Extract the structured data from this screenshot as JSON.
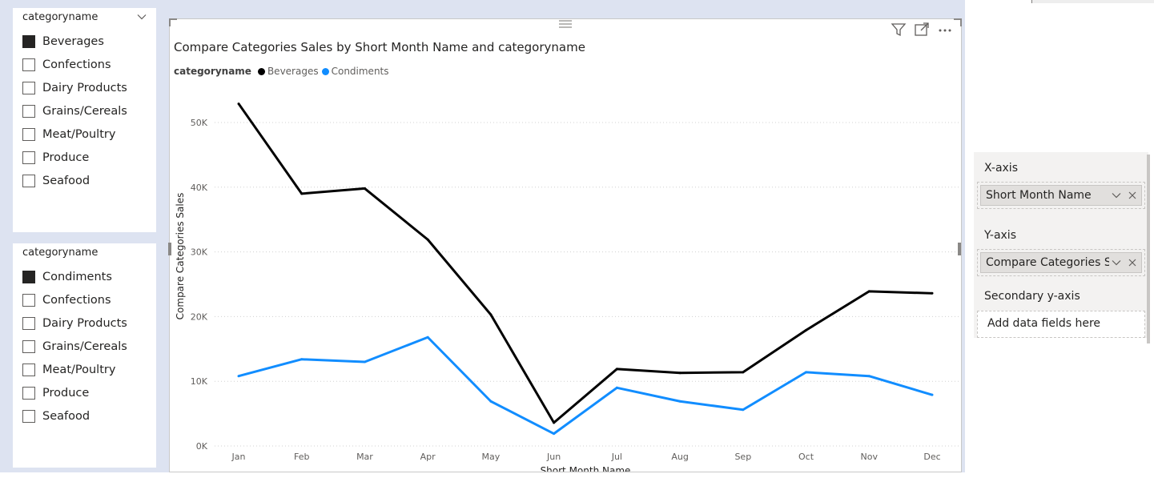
{
  "slicer_1": {
    "title": "categoryname",
    "items": [
      {
        "label": "Beverages",
        "checked": true
      },
      {
        "label": "Confections",
        "checked": false
      },
      {
        "label": "Dairy Products",
        "checked": false
      },
      {
        "label": "Grains/Cereals",
        "checked": false
      },
      {
        "label": "Meat/Poultry",
        "checked": false
      },
      {
        "label": "Produce",
        "checked": false
      },
      {
        "label": "Seafood",
        "checked": false
      }
    ]
  },
  "slicer_2": {
    "title": "categoryname",
    "items": [
      {
        "label": "Condiments",
        "checked": true
      },
      {
        "label": "Confections",
        "checked": false
      },
      {
        "label": "Dairy Products",
        "checked": false
      },
      {
        "label": "Grains/Cereals",
        "checked": false
      },
      {
        "label": "Meat/Poultry",
        "checked": false
      },
      {
        "label": "Produce",
        "checked": false
      },
      {
        "label": "Seafood",
        "checked": false
      }
    ]
  },
  "visual": {
    "icons": [
      "filter-icon",
      "focus-mode-icon",
      "more-options-icon"
    ]
  },
  "chart_data": {
    "type": "line",
    "title": "Compare Categories Sales by Short Month Name and categoryname",
    "legend_title": "categoryname",
    "legend_position": "top-left",
    "xlabel": "Short Month Name",
    "ylabel": "Compare Categories Sales",
    "categories": [
      "Jan",
      "Feb",
      "Mar",
      "Apr",
      "May",
      "Jun",
      "Jul",
      "Aug",
      "Sep",
      "Oct",
      "Nov",
      "Dec"
    ],
    "ylim": [
      0,
      50000
    ],
    "yticks": [
      "0K",
      "10K",
      "20K",
      "30K",
      "40K",
      "50K"
    ],
    "grid": "horizontal dotted",
    "series": [
      {
        "name": "Beverages",
        "color": "#000000",
        "values": [
          52900,
          39000,
          39800,
          31900,
          20300,
          3600,
          11900,
          11300,
          11400,
          17900,
          23900,
          23600
        ]
      },
      {
        "name": "Condiments",
        "color": "#118dff",
        "values": [
          10800,
          13400,
          13000,
          16800,
          6900,
          1900,
          9000,
          6900,
          5600,
          11400,
          10800,
          7900
        ]
      }
    ]
  },
  "fields_pane": {
    "x_axis_label": "X-axis",
    "x_axis_field": "Short Month Name",
    "y_axis_label": "Y-axis",
    "y_axis_field": "Compare Categories S...",
    "secondary_label": "Secondary y-axis",
    "secondary_placeholder": "Add data fields here"
  }
}
